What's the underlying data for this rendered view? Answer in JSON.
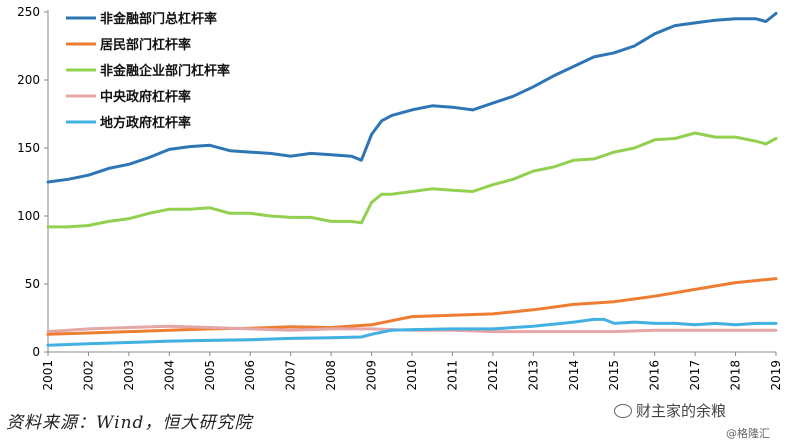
{
  "chart_data": {
    "type": "line",
    "title": "",
    "xlabel": "",
    "ylabel": "",
    "xlim": [
      2001,
      2019
    ],
    "ylim": [
      0,
      250
    ],
    "yticks": [
      0,
      50,
      100,
      150,
      200,
      250
    ],
    "xticks": [
      "2001",
      "2002",
      "2003",
      "2004",
      "2005",
      "2006",
      "2007",
      "2008",
      "2009",
      "2010",
      "2011",
      "2012",
      "2013",
      "2014",
      "2015",
      "2016",
      "2017",
      "2018",
      "2019"
    ],
    "grid": false,
    "legend_position": "top-left",
    "series": [
      {
        "name": "非金融部门总杠杆率",
        "color": "#2E75B6",
        "x": [
          2001,
          2001.5,
          2002,
          2002.5,
          2003,
          2003.5,
          2004,
          2004.5,
          2005,
          2005.5,
          2006,
          2006.5,
          2007,
          2007.5,
          2008,
          2008.5,
          2008.75,
          2009,
          2009.25,
          2009.5,
          2010,
          2010.5,
          2011,
          2011.5,
          2012,
          2012.5,
          2013,
          2013.5,
          2014,
          2014.5,
          2015,
          2015.5,
          2016,
          2016.5,
          2017,
          2017.5,
          2018,
          2018.5,
          2018.75,
          2019
        ],
        "y": [
          125,
          127,
          130,
          135,
          138,
          143,
          149,
          151,
          152,
          148,
          147,
          146,
          144,
          146,
          145,
          144,
          141,
          160,
          170,
          174,
          178,
          181,
          180,
          178,
          183,
          188,
          195,
          203,
          210,
          217,
          220,
          225,
          234,
          240,
          242,
          244,
          245,
          245,
          243,
          249
        ]
      },
      {
        "name": "居民部门杠杆率",
        "color": "#ED7D31",
        "x": [
          2001,
          2002,
          2003,
          2004,
          2005,
          2006,
          2007,
          2008,
          2009,
          2010,
          2011,
          2012,
          2013,
          2014,
          2015,
          2016,
          2017,
          2018,
          2019
        ],
        "y": [
          13,
          14,
          15,
          16,
          17,
          17.5,
          18.5,
          18,
          20,
          26,
          27,
          28,
          31,
          35,
          37,
          41,
          46,
          51,
          54
        ]
      },
      {
        "name": "非金融企业部门杠杆率",
        "color": "#92D050",
        "x": [
          2001,
          2001.5,
          2002,
          2002.5,
          2003,
          2003.5,
          2004,
          2004.5,
          2005,
          2005.5,
          2006,
          2006.5,
          2007,
          2007.5,
          2008,
          2008.5,
          2008.75,
          2009,
          2009.25,
          2009.5,
          2010,
          2010.5,
          2011,
          2011.5,
          2012,
          2012.5,
          2013,
          2013.5,
          2014,
          2014.5,
          2015,
          2015.5,
          2016,
          2016.5,
          2017,
          2017.5,
          2018,
          2018.5,
          2018.75,
          2019
        ],
        "y": [
          92,
          92,
          93,
          96,
          98,
          102,
          105,
          105,
          106,
          102,
          102,
          100,
          99,
          99,
          96,
          96,
          95,
          110,
          116,
          116,
          118,
          120,
          119,
          118,
          123,
          127,
          133,
          136,
          141,
          142,
          147,
          150,
          156,
          157,
          161,
          158,
          158,
          155,
          153,
          157
        ]
      },
      {
        "name": "中央政府杠杆率",
        "color": "#E4A6A6",
        "x": [
          2001,
          2002,
          2003,
          2004,
          2005,
          2006,
          2007,
          2008,
          2009,
          2010,
          2011,
          2012,
          2013,
          2014,
          2015,
          2016,
          2017,
          2018,
          2019
        ],
        "y": [
          15,
          17,
          18,
          19,
          18,
          17,
          16,
          17,
          17,
          16,
          16,
          15,
          15,
          15,
          15,
          16,
          16,
          16,
          16
        ]
      },
      {
        "name": "地方政府杠杆率",
        "color": "#41B0E3",
        "x": [
          2001,
          2002,
          2003,
          2004,
          2005,
          2006,
          2007,
          2008,
          2008.75,
          2009,
          2009.5,
          2010,
          2011,
          2012,
          2013,
          2014,
          2014.5,
          2014.75,
          2015,
          2015.5,
          2016,
          2016.5,
          2017,
          2017.5,
          2018,
          2018.5,
          2019
        ],
        "y": [
          5,
          6,
          7,
          8,
          8.5,
          9,
          10,
          10.5,
          11,
          13,
          16,
          16.5,
          17,
          17,
          19,
          22,
          24,
          24,
          21,
          22,
          21,
          21,
          20,
          21,
          20,
          21,
          21
        ]
      }
    ]
  },
  "source_text": "资料来源：Wind，恒大研究院",
  "watermark_text": "财主家的余粮",
  "watermark_sub": "@格隆汇"
}
